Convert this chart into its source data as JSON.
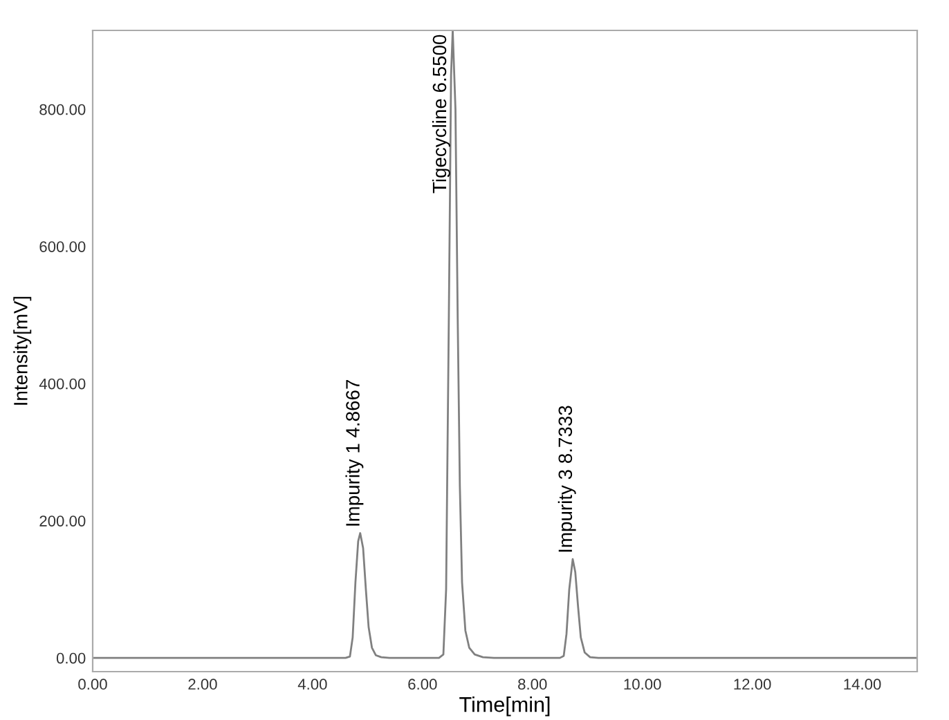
{
  "chart_data": {
    "type": "line",
    "xlabel": "Time[min]",
    "ylabel": "Intensity[mV]",
    "x": [
      0,
      4.6,
      4.68,
      4.73,
      4.78,
      4.83,
      4.8667,
      4.92,
      4.97,
      5.02,
      5.08,
      5.15,
      5.25,
      5.4,
      6.3,
      6.38,
      6.43,
      6.48,
      6.52,
      6.55,
      6.6,
      6.64,
      6.68,
      6.72,
      6.78,
      6.85,
      6.95,
      7.1,
      7.3,
      8.5,
      8.57,
      8.62,
      8.67,
      8.7333,
      8.78,
      8.83,
      8.88,
      8.95,
      9.05,
      9.2,
      15
    ],
    "series": [
      {
        "color": "#808080",
        "values": [
          0,
          0,
          2,
          30,
          110,
          170,
          182,
          160,
          100,
          45,
          15,
          4,
          1,
          0,
          0,
          5,
          100,
          500,
          850,
          915,
          800,
          500,
          250,
          110,
          40,
          15,
          5,
          1,
          0,
          0,
          3,
          35,
          100,
          144,
          125,
          75,
          30,
          8,
          1,
          0,
          0
        ]
      }
    ],
    "xlim": [
      0,
      15
    ],
    "ylim": [
      -20,
      915
    ],
    "xticks": [
      {
        "value": 0,
        "label": "0.00"
      },
      {
        "value": 2,
        "label": "2.00"
      },
      {
        "value": 4,
        "label": "4.00"
      },
      {
        "value": 6,
        "label": "6.00"
      },
      {
        "value": 8,
        "label": "8.00"
      },
      {
        "value": 10,
        "label": "10.00"
      },
      {
        "value": 12,
        "label": "12.00"
      },
      {
        "value": 14,
        "label": "14.00"
      }
    ],
    "yticks": [
      {
        "value": 0,
        "label": "0.00"
      },
      {
        "value": 200,
        "label": "200.00"
      },
      {
        "value": 400,
        "label": "400.00"
      },
      {
        "value": 600,
        "label": "600.00"
      },
      {
        "value": 800,
        "label": "800.00"
      }
    ],
    "annotations": [
      {
        "text": "Impurity 1 4.8667",
        "x": 4.8667,
        "y": 182
      },
      {
        "text": "Tigecycline 6.5500",
        "x": 6.55,
        "y": 915
      },
      {
        "text": "Impurity 3 8.7333",
        "x": 8.7333,
        "y": 144
      }
    ],
    "grid": false,
    "marker": "none",
    "line_style": "solid"
  }
}
